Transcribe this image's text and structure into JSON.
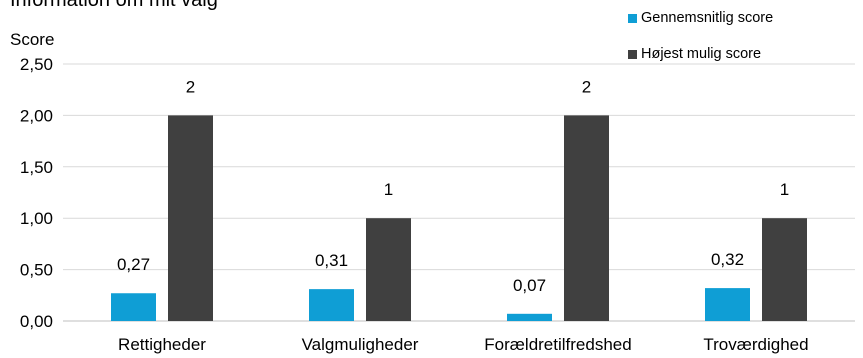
{
  "chart_data": {
    "type": "bar",
    "title": "Information om mit valg",
    "ylabel": "Score",
    "xlabel": "",
    "ylim": [
      0,
      2.5
    ],
    "yticks": [
      0,
      0.5,
      1,
      1.5,
      2,
      2.5
    ],
    "ytick_labels": [
      "0,00",
      "0,50",
      "1,00",
      "1,50",
      "2,00",
      "2,50"
    ],
    "categories": [
      "Rettigheder",
      "Valgmuligheder",
      "Forældretilfredshed",
      "Troværdighed"
    ],
    "series": [
      {
        "name": "Gennemsnitlig score",
        "color": "#0f9ed5",
        "values": [
          0.27,
          0.31,
          0.07,
          0.32
        ],
        "labels": [
          "0,27",
          "0,31",
          "0,07",
          "0,32"
        ]
      },
      {
        "name": "Højest mulig score",
        "color": "#404040",
        "values": [
          2,
          1,
          2,
          1
        ],
        "labels": [
          "2",
          "1",
          "2",
          "1"
        ]
      }
    ],
    "grid": true,
    "legend_position": "top-right"
  }
}
